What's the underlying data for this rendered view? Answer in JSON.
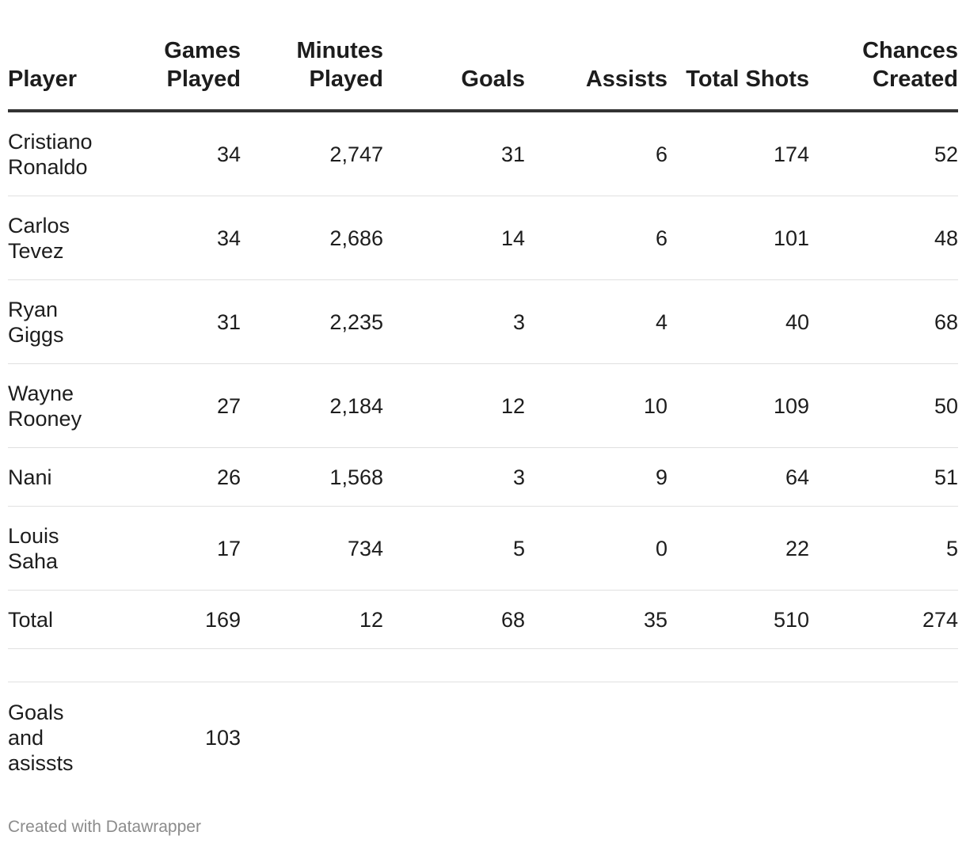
{
  "chart_data": {
    "type": "table",
    "columns": [
      "Player",
      "Games Played",
      "Minutes Played",
      "Goals",
      "Assists",
      "Total Shots",
      "Chances Created"
    ],
    "rows": [
      [
        "Cristiano Ronaldo",
        "34",
        "2,747",
        "31",
        "6",
        "174",
        "52"
      ],
      [
        "Carlos Tevez",
        "34",
        "2,686",
        "14",
        "6",
        "101",
        "48"
      ],
      [
        "Ryan Giggs",
        "31",
        "2,235",
        "3",
        "4",
        "40",
        "68"
      ],
      [
        "Wayne Rooney",
        "27",
        "2,184",
        "12",
        "10",
        "109",
        "50"
      ],
      [
        "Nani",
        "26",
        "1,568",
        "3",
        "9",
        "64",
        "51"
      ],
      [
        "Louis Saha",
        "17",
        "734",
        "5",
        "0",
        "22",
        "5"
      ],
      [
        "Total",
        "169",
        "12",
        "68",
        "35",
        "510",
        "274"
      ],
      [
        "",
        "",
        "",
        "",
        "",
        "",
        ""
      ],
      [
        "Goals and asissts",
        "103",
        "",
        "",
        "",
        "",
        ""
      ]
    ]
  },
  "footer": "Created with Datawrapper"
}
